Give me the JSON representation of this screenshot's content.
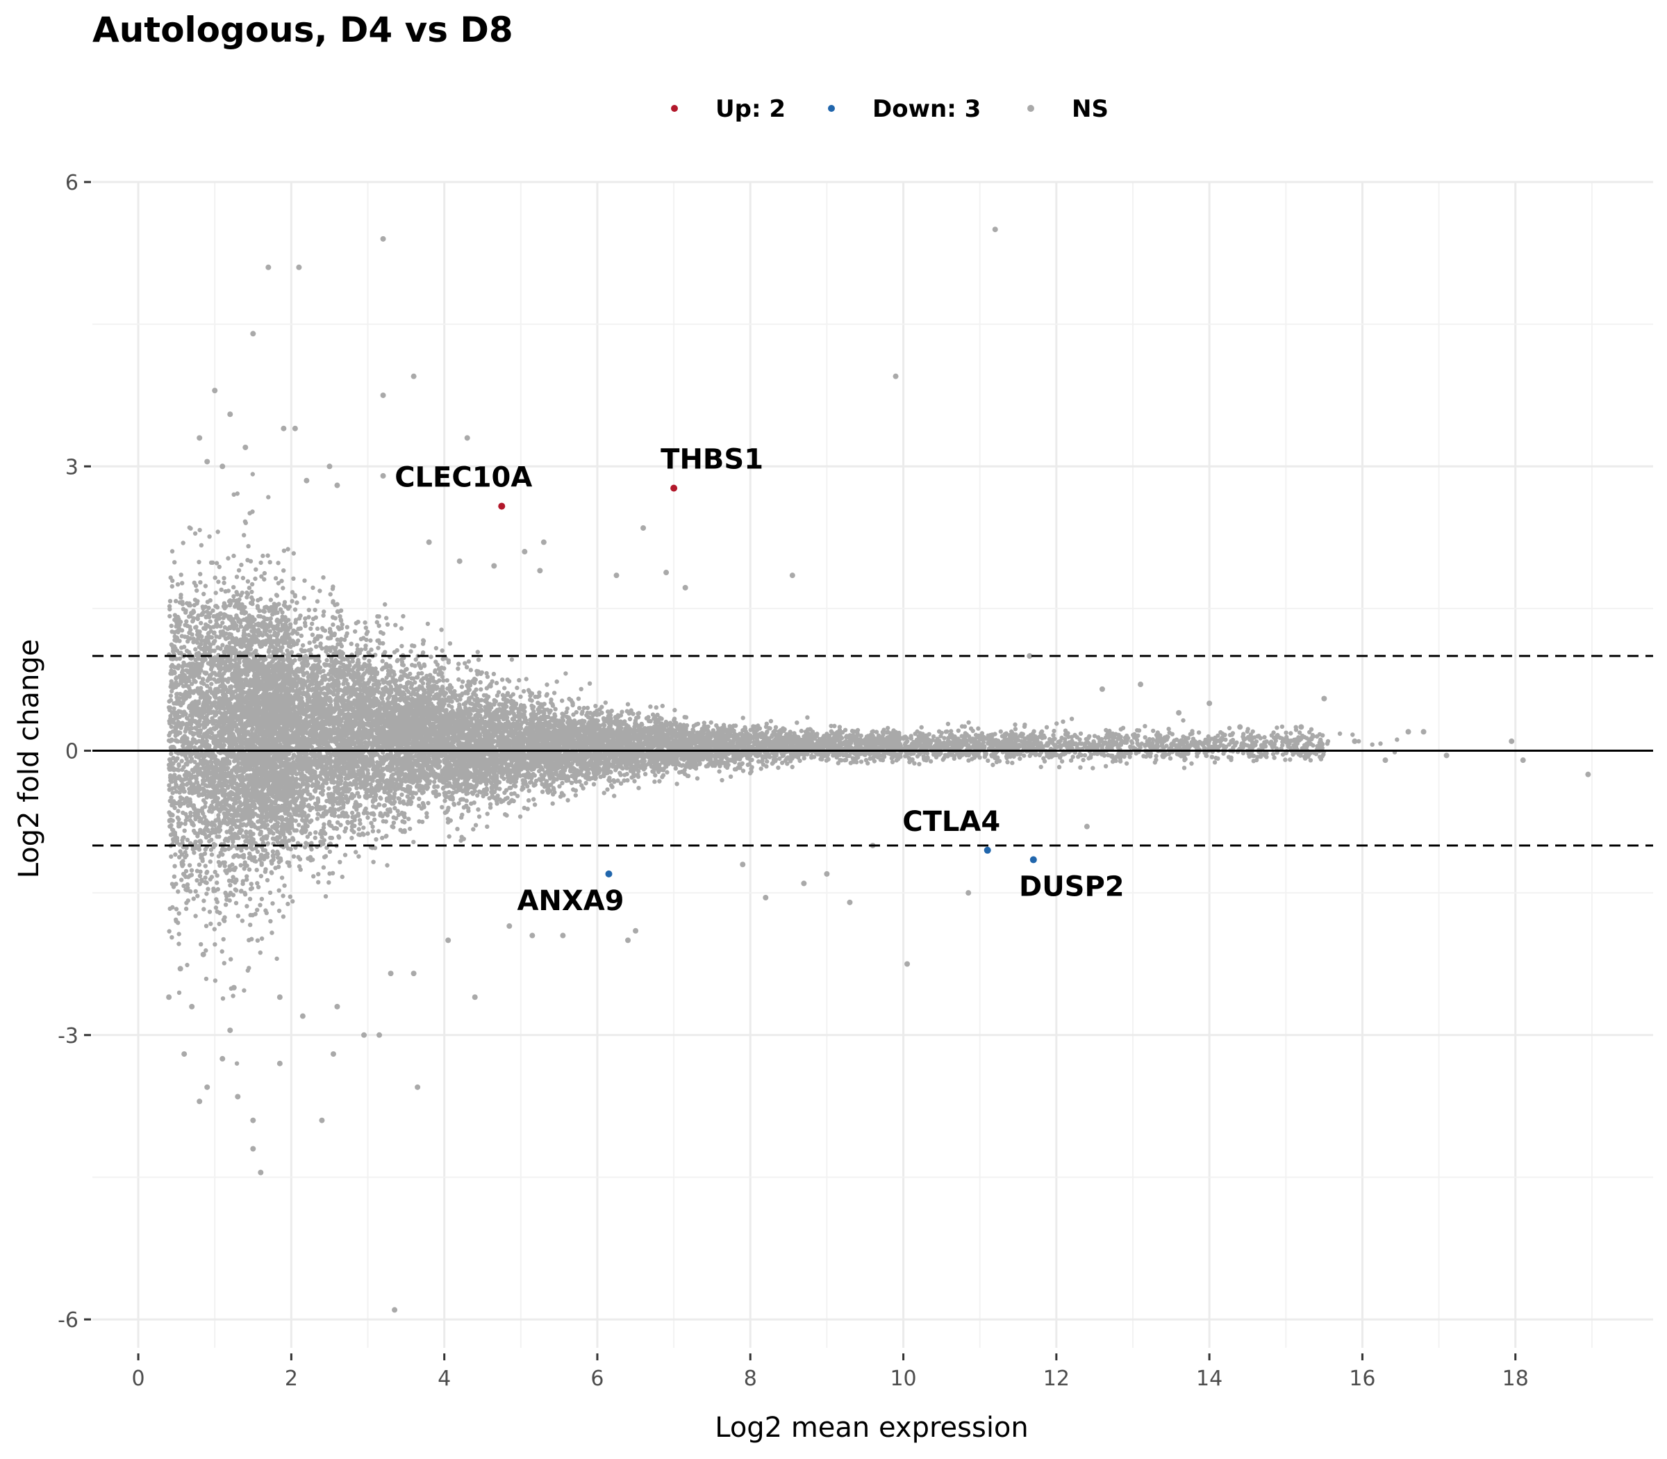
{
  "chart_data": {
    "type": "scatter",
    "title": "Autologous, D4 vs D8",
    "xlabel": "Log2 mean expression",
    "ylabel": "Log2 fold change",
    "xlim": [
      -0.6,
      19.8
    ],
    "ylim": [
      -6.3,
      6.0
    ],
    "x_ticks": [
      0,
      2,
      4,
      6,
      8,
      10,
      12,
      14,
      16,
      18
    ],
    "y_ticks": [
      -6,
      -3,
      0,
      3,
      6
    ],
    "grid": true,
    "legend_position": "top",
    "thresholds": {
      "fold_change": [
        1,
        -1
      ],
      "baseline": 0
    },
    "colors": {
      "up": "#b2182b",
      "down": "#2166ac",
      "ns": "#a9a9a9"
    },
    "series": [
      {
        "name": "Up: 2",
        "color": "#b2182b",
        "points": [
          [
            4.75,
            2.58
          ],
          [
            7.0,
            2.77
          ]
        ]
      },
      {
        "name": "Down: 3",
        "color": "#2166ac",
        "points": [
          [
            6.15,
            -1.3
          ],
          [
            11.1,
            -1.05
          ],
          [
            11.7,
            -1.15
          ]
        ]
      },
      {
        "name": "NS",
        "color": "#a9a9a9",
        "points": [
          [
            11.2,
            5.5
          ],
          [
            3.2,
            5.4
          ],
          [
            1.7,
            5.1
          ],
          [
            2.1,
            5.1
          ],
          [
            1.5,
            4.4
          ],
          [
            3.6,
            3.95
          ],
          [
            9.9,
            3.95
          ],
          [
            1.0,
            3.8
          ],
          [
            3.2,
            3.75
          ],
          [
            1.2,
            3.55
          ],
          [
            1.9,
            3.4
          ],
          [
            2.05,
            3.4
          ],
          [
            0.8,
            3.3
          ],
          [
            4.3,
            3.3
          ],
          [
            1.4,
            3.2
          ],
          [
            0.9,
            3.05
          ],
          [
            1.1,
            3.0
          ],
          [
            2.5,
            3.0
          ],
          [
            3.2,
            2.9
          ],
          [
            2.2,
            2.85
          ],
          [
            2.6,
            2.8
          ],
          [
            6.6,
            2.35
          ],
          [
            4.2,
            2.0
          ],
          [
            5.3,
            2.2
          ],
          [
            5.05,
            2.1
          ],
          [
            6.9,
            1.88
          ],
          [
            7.15,
            1.72
          ],
          [
            8.55,
            1.85
          ],
          [
            5.25,
            1.9
          ],
          [
            4.65,
            1.95
          ],
          [
            6.25,
            1.85
          ],
          [
            3.8,
            2.2
          ],
          [
            11.65,
            1.0
          ],
          [
            15.5,
            0.55
          ],
          [
            13.1,
            0.7
          ],
          [
            17.95,
            0.1
          ],
          [
            18.95,
            -0.25
          ],
          [
            17.1,
            -0.05
          ],
          [
            16.8,
            0.2
          ],
          [
            16.6,
            0.2
          ],
          [
            18.1,
            -0.1
          ],
          [
            16.3,
            -0.1
          ],
          [
            15.9,
            0.1
          ],
          [
            14.0,
            0.5
          ],
          [
            12.6,
            0.65
          ],
          [
            13.6,
            0.4
          ],
          [
            14.4,
            0.25
          ],
          [
            15.2,
            0.25
          ],
          [
            10.05,
            -2.25
          ],
          [
            9.0,
            -1.3
          ],
          [
            9.6,
            -1.0
          ],
          [
            10.85,
            -1.5
          ],
          [
            8.7,
            -1.4
          ],
          [
            12.4,
            -0.8
          ],
          [
            8.2,
            -1.55
          ],
          [
            7.9,
            -1.2
          ],
          [
            9.3,
            -1.6
          ],
          [
            6.5,
            -1.9
          ],
          [
            6.4,
            -2.0
          ],
          [
            5.55,
            -1.95
          ],
          [
            4.4,
            -2.6
          ],
          [
            3.65,
            -3.55
          ],
          [
            3.15,
            -3.0
          ],
          [
            3.35,
            -5.9
          ],
          [
            2.4,
            -3.9
          ],
          [
            1.6,
            -4.45
          ],
          [
            1.5,
            -4.2
          ],
          [
            1.3,
            -3.65
          ],
          [
            0.8,
            -3.7
          ],
          [
            0.6,
            -3.2
          ],
          [
            0.9,
            -3.55
          ],
          [
            1.1,
            -3.25
          ],
          [
            1.5,
            -3.9
          ],
          [
            1.85,
            -3.3
          ],
          [
            2.55,
            -3.2
          ],
          [
            2.95,
            -3.0
          ],
          [
            2.15,
            -2.8
          ],
          [
            1.85,
            -2.6
          ],
          [
            4.05,
            -2.0
          ],
          [
            3.3,
            -2.35
          ],
          [
            2.6,
            -2.7
          ],
          [
            1.2,
            -2.95
          ],
          [
            0.7,
            -2.7
          ],
          [
            3.6,
            -2.35
          ],
          [
            0.4,
            -2.6
          ],
          [
            0.55,
            -2.3
          ],
          [
            0.85,
            -2.15
          ],
          [
            1.25,
            -2.5
          ],
          [
            4.85,
            -1.85
          ],
          [
            5.15,
            -1.95
          ]
        ]
      }
    ],
    "annotations": [
      {
        "text": "CLEC10A",
        "x": 4.75,
        "y": 2.58
      },
      {
        "text": "THBS1",
        "x": 7.0,
        "y": 2.77
      },
      {
        "text": "ANXA9",
        "x": 6.15,
        "y": -1.3
      },
      {
        "text": "CTLA4",
        "x": 11.1,
        "y": -1.05
      },
      {
        "text": "DUSP2",
        "x": 11.7,
        "y": -1.15
      }
    ],
    "background_cloud": {
      "series": "NS",
      "point_count": 16000,
      "description_x_range": [
        0.3,
        17.2
      ],
      "seed": 20240611
    }
  }
}
